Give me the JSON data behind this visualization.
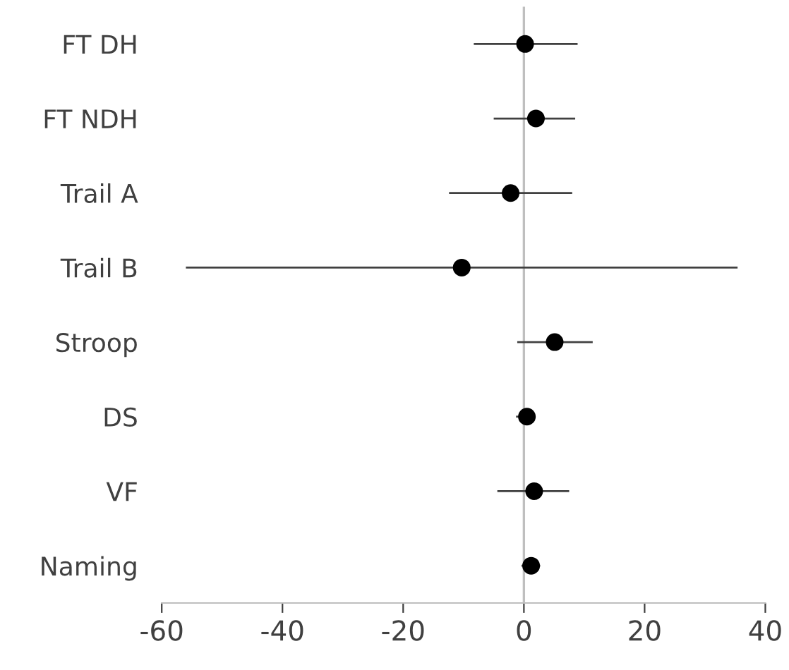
{
  "chart_data": {
    "type": "scatter",
    "orientation": "horizontal",
    "categories": [
      "FT DH",
      "FT NDH",
      "Trail A",
      "Trail B",
      "Stroop",
      "DS",
      "VF",
      "Naming"
    ],
    "values": [
      0.2,
      2.0,
      -2.2,
      -10.3,
      5.1,
      0.5,
      1.7,
      1.2
    ],
    "errors": [
      [
        -8.3,
        8.9
      ],
      [
        -5.0,
        8.5
      ],
      [
        -12.4,
        8.0
      ],
      [
        -56.0,
        35.4
      ],
      [
        -1.1,
        11.4
      ],
      [
        -1.3,
        1.5
      ],
      [
        -4.4,
        7.5
      ],
      [
        -0.4,
        2.7
      ]
    ],
    "color": "#000000",
    "marker": "circle",
    "xlim": [
      -60,
      40
    ],
    "xticks": [
      -60,
      -40,
      -20,
      0,
      20,
      40
    ],
    "ref_lines": [
      {
        "axis": "x",
        "value": 0,
        "color": "#bfbfbf"
      }
    ],
    "grid": false,
    "legend": false
  }
}
